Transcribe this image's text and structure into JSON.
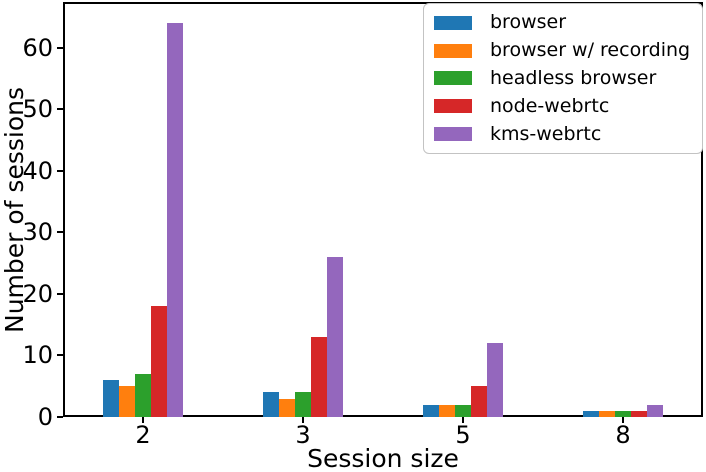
{
  "chart_data": {
    "type": "bar",
    "title": "",
    "xlabel": "Session size",
    "ylabel": "Number of sessions",
    "categories": [
      "2",
      "3",
      "5",
      "8"
    ],
    "series": [
      {
        "name": "browser",
        "color": "#1f77b4",
        "values": [
          6,
          4,
          2,
          1
        ]
      },
      {
        "name": "browser w/ recording",
        "color": "#ff7f0e",
        "values": [
          5,
          3,
          2,
          1
        ]
      },
      {
        "name": "headless browser",
        "color": "#2ca02c",
        "values": [
          7,
          4,
          2,
          1
        ]
      },
      {
        "name": "node-webrtc",
        "color": "#d62728",
        "values": [
          18,
          13,
          5,
          1
        ]
      },
      {
        "name": "kms-webrtc",
        "color": "#9467bd",
        "values": [
          64,
          26,
          12,
          2
        ]
      }
    ],
    "y_ticks": [
      0,
      10,
      20,
      30,
      40,
      50,
      60
    ],
    "ylim": [
      0,
      67.4
    ],
    "grid": false,
    "legend_position": "upper right"
  },
  "colors": {
    "axis": "#000000",
    "legend_border": "#c3c3c3",
    "background": "#ffffff"
  }
}
